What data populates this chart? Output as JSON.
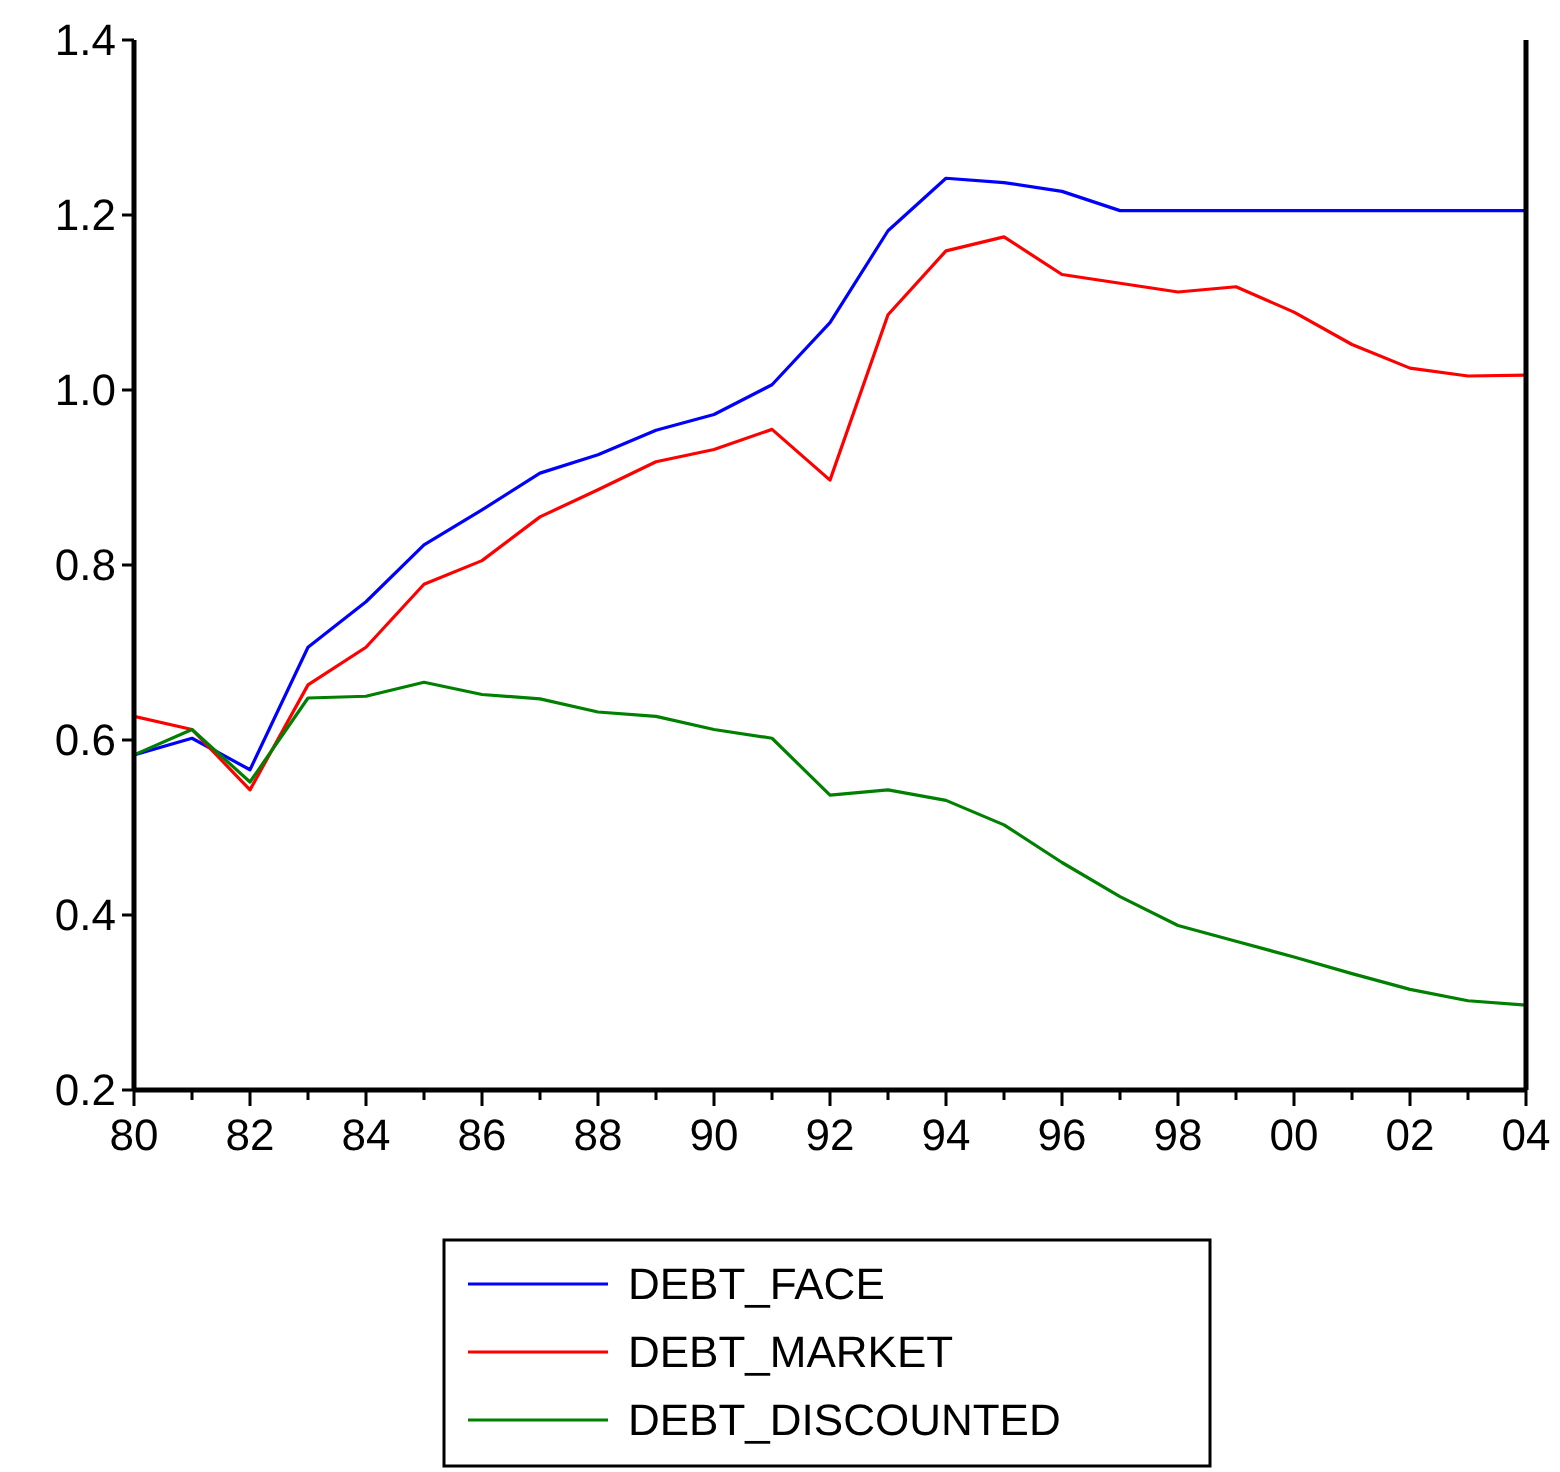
{
  "chart_data": {
    "type": "line",
    "x": [
      1980,
      1981,
      1982,
      1983,
      1984,
      1985,
      1986,
      1987,
      1988,
      1989,
      1990,
      1991,
      1992,
      1993,
      1994,
      1995,
      1996,
      1997,
      1998,
      1999,
      2000,
      2001,
      2002,
      2003,
      2004
    ],
    "series": [
      {
        "name": "DEBT_FACE",
        "color": "#0000ff",
        "values": [
          0.583,
          0.602,
          0.566,
          0.706,
          0.758,
          0.823,
          0.863,
          0.905,
          0.926,
          0.954,
          0.972,
          1.006,
          1.077,
          1.182,
          1.242,
          1.237,
          1.227,
          1.205,
          1.205,
          1.205,
          1.205,
          1.205,
          1.205,
          1.205,
          1.205
        ]
      },
      {
        "name": "DEBT_MARKET",
        "color": "#ff0000",
        "values": [
          0.627,
          0.612,
          0.543,
          0.663,
          0.706,
          0.778,
          0.805,
          0.855,
          0.886,
          0.918,
          0.932,
          0.955,
          0.897,
          1.086,
          1.159,
          1.175,
          1.132,
          1.122,
          1.112,
          1.118,
          1.089,
          1.052,
          1.025,
          1.016,
          1.017
        ]
      },
      {
        "name": "DEBT_DISCOUNTED",
        "color": "#008000",
        "values": [
          0.583,
          0.612,
          0.552,
          0.648,
          0.65,
          0.666,
          0.652,
          0.647,
          0.632,
          0.627,
          0.612,
          0.602,
          0.537,
          0.543,
          0.531,
          0.503,
          0.46,
          0.421,
          0.388,
          0.37,
          0.352,
          0.333,
          0.315,
          0.302,
          0.297
        ]
      }
    ],
    "xlim": [
      1980,
      2004
    ],
    "xticks": [
      {
        "value": 1980,
        "label": "80"
      },
      {
        "value": 1981,
        "label": null
      },
      {
        "value": 1982,
        "label": "82"
      },
      {
        "value": 1983,
        "label": null
      },
      {
        "value": 1984,
        "label": "84"
      },
      {
        "value": 1985,
        "label": null
      },
      {
        "value": 1986,
        "label": "86"
      },
      {
        "value": 1987,
        "label": null
      },
      {
        "value": 1988,
        "label": "88"
      },
      {
        "value": 1989,
        "label": null
      },
      {
        "value": 1990,
        "label": "90"
      },
      {
        "value": 1991,
        "label": null
      },
      {
        "value": 1992,
        "label": "92"
      },
      {
        "value": 1993,
        "label": null
      },
      {
        "value": 1994,
        "label": "94"
      },
      {
        "value": 1995,
        "label": null
      },
      {
        "value": 1996,
        "label": "96"
      },
      {
        "value": 1997,
        "label": null
      },
      {
        "value": 1998,
        "label": "98"
      },
      {
        "value": 1999,
        "label": null
      },
      {
        "value": 2000,
        "label": "00"
      },
      {
        "value": 2001,
        "label": null
      },
      {
        "value": 2002,
        "label": "02"
      },
      {
        "value": 2003,
        "label": null
      },
      {
        "value": 2004,
        "label": "04"
      }
    ],
    "ylim": [
      0.2,
      1.4
    ],
    "yticks": [
      {
        "value": 0.2,
        "label": "0.2"
      },
      {
        "value": 0.4,
        "label": "0.4"
      },
      {
        "value": 0.6,
        "label": "0.6"
      },
      {
        "value": 0.8,
        "label": "0.8"
      },
      {
        "value": 1,
        "label": "1.0"
      },
      {
        "value": 1.2,
        "label": "1.2"
      },
      {
        "value": 1.4,
        "label": "1.4"
      }
    ],
    "legend": "bottom",
    "grid": false,
    "marker": "none",
    "line_style": "solid"
  }
}
